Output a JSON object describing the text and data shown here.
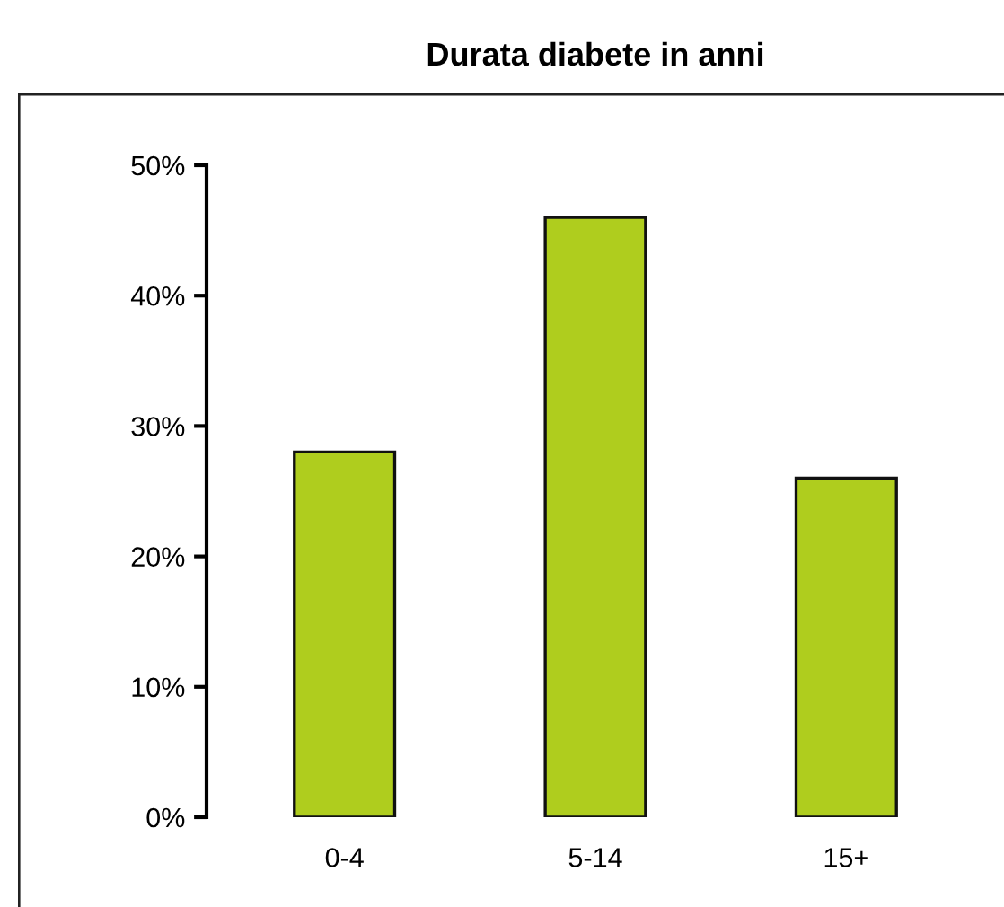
{
  "chart_data": {
    "type": "bar",
    "title": "Durata diabete in anni",
    "categories": [
      "0-4",
      "5-14",
      "15+"
    ],
    "values": [
      28,
      46,
      26
    ],
    "color": "#afcd1e",
    "ylim": [
      0,
      50
    ],
    "yticks": [
      {
        "value": 0,
        "label": "0%"
      },
      {
        "value": 10,
        "label": "10%"
      },
      {
        "value": 20,
        "label": "20%"
      },
      {
        "value": 30,
        "label": "30%"
      },
      {
        "value": 40,
        "label": "40%"
      },
      {
        "value": 50,
        "label": "50%"
      }
    ],
    "grid": false
  }
}
